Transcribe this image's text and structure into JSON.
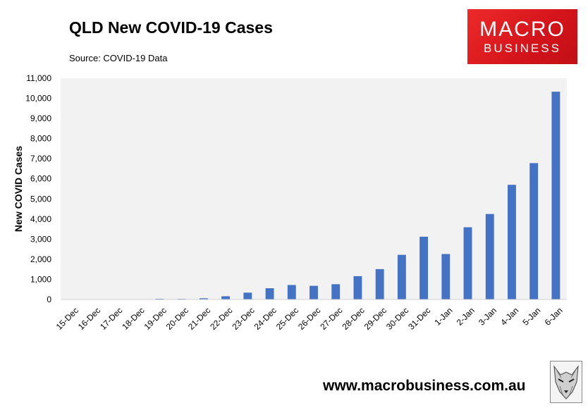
{
  "header": {
    "title": "QLD New COVID-19 Cases",
    "source": "Source: COVID-19 Data"
  },
  "logo": {
    "line1": "MACRO",
    "line2": "BUSINESS",
    "color": "#e0171d"
  },
  "footer": {
    "url": "www.macrobusiness.com.au",
    "mascot_icon": "wolf-icon"
  },
  "colors": {
    "bar": "#4472c4",
    "plot_bg": "#f2f2f2"
  },
  "chart_data": {
    "type": "bar",
    "title": "QLD New COVID-19 Cases",
    "xlabel": "",
    "ylabel": "New COVID Cases",
    "ylim": [
      0,
      11000
    ],
    "ytick_step": 1000,
    "ytick_labels": [
      "0",
      "1,000",
      "2,000",
      "3,000",
      "4,000",
      "5,000",
      "6,000",
      "7,000",
      "8,000",
      "9,000",
      "10,000",
      "11,000"
    ],
    "grid": false,
    "categories": [
      "15-Dec",
      "16-Dec",
      "17-Dec",
      "18-Dec",
      "19-Dec",
      "20-Dec",
      "21-Dec",
      "22-Dec",
      "23-Dec",
      "24-Dec",
      "25-Dec",
      "26-Dec",
      "27-Dec",
      "28-Dec",
      "29-Dec",
      "30-Dec",
      "31-Dec",
      "1-Jan",
      "2-Jan",
      "3-Jan",
      "4-Jan",
      "5-Jan",
      "6-Jan"
    ],
    "values": [
      2,
      5,
      7,
      10,
      35,
      30,
      60,
      160,
      340,
      560,
      720,
      680,
      760,
      1160,
      1510,
      2220,
      3120,
      2260,
      3590,
      4250,
      5700,
      6780,
      10330
    ]
  }
}
